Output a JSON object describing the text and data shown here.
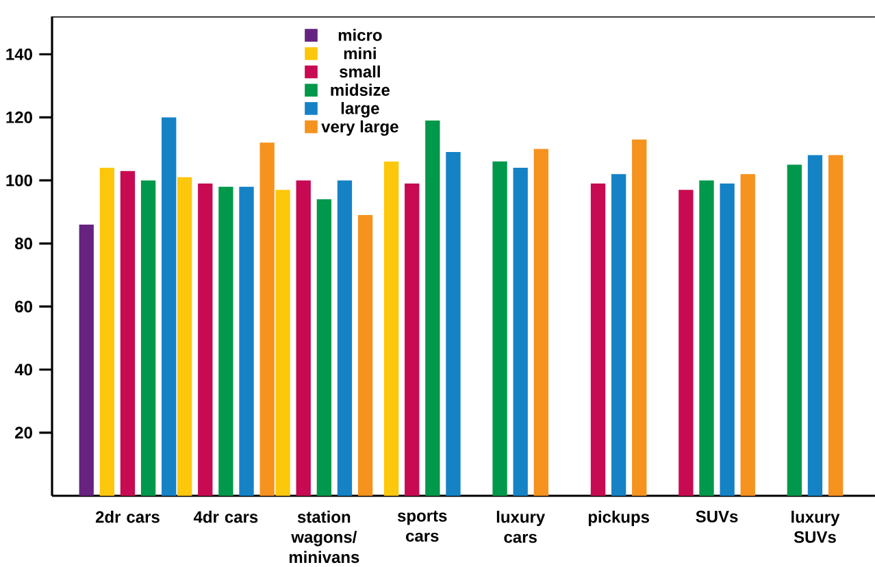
{
  "chart_data": {
    "type": "bar",
    "categories": [
      "2dr cars",
      "4dr cars",
      "station wagons/ minivans",
      "sports cars",
      "luxury cars",
      "pickups",
      "SUVs",
      "luxury SUVs"
    ],
    "series": [
      {
        "name": "micro",
        "color": "#66237f",
        "values": [
          86,
          null,
          null,
          null,
          null,
          null,
          null,
          null
        ]
      },
      {
        "name": "mini",
        "color": "#fdc70b",
        "values": [
          104,
          101,
          97,
          106,
          null,
          null,
          null,
          null
        ]
      },
      {
        "name": "small",
        "color": "#c70a51",
        "values": [
          103,
          99,
          100,
          99,
          null,
          99,
          97,
          null
        ]
      },
      {
        "name": "midsize",
        "color": "#00984a",
        "values": [
          100,
          98,
          94,
          119,
          106,
          null,
          100,
          105
        ]
      },
      {
        "name": "large",
        "color": "#1482c5",
        "values": [
          120,
          98,
          100,
          109,
          104,
          102,
          99,
          108
        ]
      },
      {
        "name": "very large",
        "color": "#f6921e",
        "values": [
          null,
          112,
          89,
          null,
          110,
          113,
          102,
          108
        ]
      }
    ],
    "ylim": [
      0,
      152
    ],
    "yticks": [
      20,
      40,
      60,
      80,
      100,
      120,
      140
    ],
    "grid": false,
    "legend": "top"
  }
}
